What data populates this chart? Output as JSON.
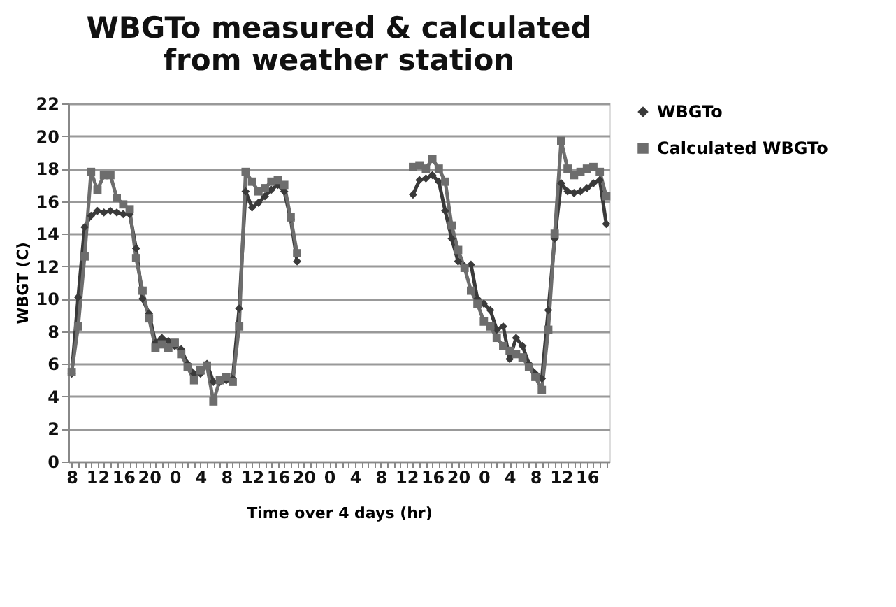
{
  "chart_data": {
    "type": "line",
    "title": "WBGTo measured & calculated from weather station",
    "xlabel": "Time over 4 days (hr)",
    "ylabel": "WBGT (C)",
    "categories": [
      "8",
      null,
      null,
      null,
      "12",
      null,
      null,
      null,
      "16",
      null,
      null,
      null,
      "20",
      null,
      null,
      null,
      "0",
      null,
      null,
      null,
      "4",
      null,
      null,
      null,
      "8",
      null,
      null,
      null,
      "12",
      null,
      null,
      null,
      "16",
      null,
      null,
      null,
      "20",
      null,
      null,
      null,
      "0",
      null,
      null,
      null,
      "4",
      null,
      null,
      null,
      "8",
      null,
      null,
      null,
      "12",
      null,
      null,
      null,
      "16",
      null,
      null,
      null,
      "20",
      null,
      null,
      null,
      "0",
      null,
      null,
      null,
      "4",
      null,
      null,
      null,
      "8",
      null,
      null,
      null,
      "12",
      null,
      null,
      null,
      "16",
      null,
      null,
      null
    ],
    "series": [
      {
        "name": "WBGTo",
        "color": "#3a3a3a",
        "marker": "diamond",
        "values": [
          5.4,
          10.1,
          14.4,
          15.1,
          15.4,
          15.3,
          15.4,
          15.3,
          15.2,
          15.2,
          13.1,
          10.0,
          9.1,
          7.3,
          7.6,
          7.4,
          7.1,
          6.9,
          6.0,
          5.4,
          5.4,
          6.0,
          4.9,
          4.9,
          5.0,
          5.1,
          9.4,
          16.6,
          15.6,
          15.9,
          16.3,
          16.7,
          17.0,
          16.6,
          14.9,
          12.3,
          null,
          null,
          null,
          null,
          null,
          null,
          null,
          null,
          null,
          null,
          null,
          null,
          null,
          null,
          null,
          null,
          null,
          16.4,
          17.3,
          17.4,
          17.6,
          17.2,
          15.4,
          13.7,
          12.3,
          12.0,
          12.1,
          10.0,
          9.7,
          9.3,
          8.1,
          8.3,
          6.3,
          7.6,
          7.1,
          6.0,
          5.4,
          5.1,
          9.3,
          13.7,
          17.1,
          16.6,
          16.5,
          16.6,
          16.8,
          17.1,
          17.3,
          14.6
        ]
      },
      {
        "name": "Calculated WBGTo",
        "color": "#6d6d6d",
        "marker": "square",
        "values": [
          5.5,
          8.3,
          12.6,
          17.8,
          16.7,
          17.6,
          17.6,
          16.2,
          15.8,
          15.5,
          12.5,
          10.5,
          8.8,
          7.0,
          7.2,
          7.0,
          7.3,
          6.6,
          5.8,
          5.0,
          5.6,
          5.9,
          3.7,
          5.0,
          5.2,
          4.9,
          8.3,
          17.8,
          17.2,
          16.6,
          16.8,
          17.2,
          17.3,
          17.0,
          15.0,
          12.8,
          null,
          null,
          null,
          null,
          null,
          null,
          null,
          null,
          null,
          null,
          null,
          null,
          null,
          null,
          null,
          null,
          null,
          18.1,
          18.2,
          18.0,
          18.6,
          18.0,
          17.2,
          14.5,
          13.0,
          11.9,
          10.5,
          9.7,
          8.6,
          8.3,
          7.6,
          7.1,
          6.8,
          6.6,
          6.4,
          5.8,
          5.2,
          4.4,
          8.1,
          14.0,
          19.7,
          18.0,
          17.6,
          17.8,
          18.0,
          18.1,
          17.8,
          16.3
        ]
      }
    ],
    "ylim": [
      0,
      22
    ],
    "yticks": [
      0,
      2,
      4,
      6,
      8,
      10,
      12,
      14,
      16,
      18,
      20,
      22
    ],
    "grid": "y",
    "legend": "right",
    "line_style": "solid"
  }
}
